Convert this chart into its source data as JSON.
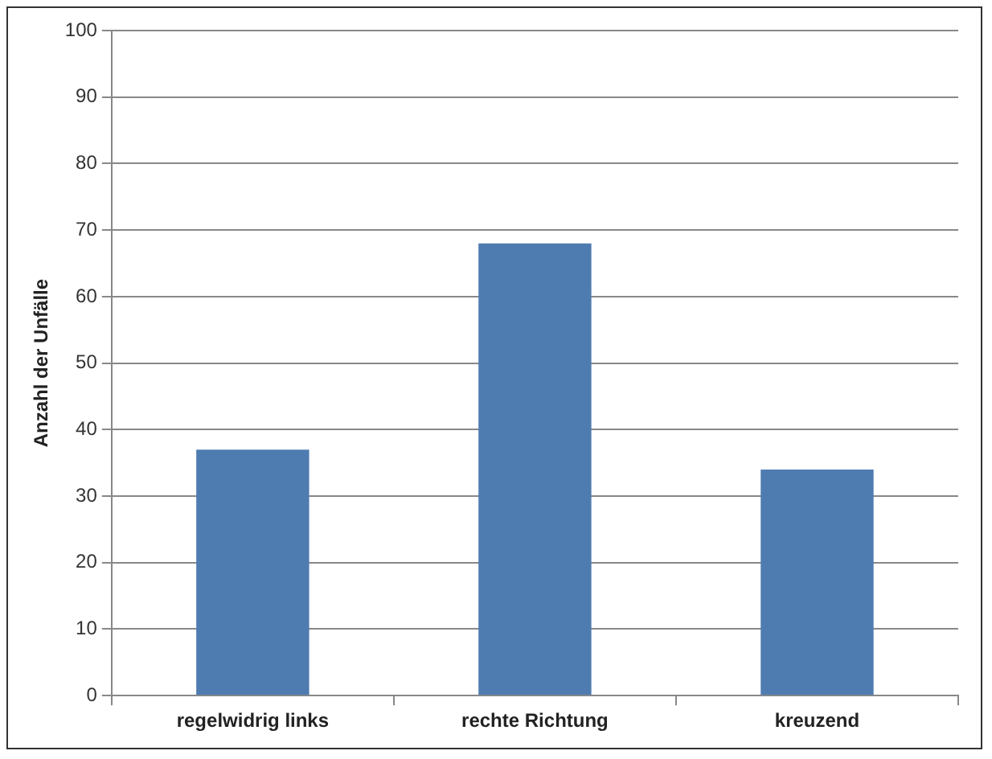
{
  "chart_data": {
    "type": "bar",
    "ylabel": "Anzahl der Unfälle",
    "categories": [
      "regelwidrig links",
      "rechte Richtung",
      "kreuzend"
    ],
    "values": [
      37,
      68,
      34
    ],
    "color": "#4f7cb0",
    "ylim": [
      0,
      100
    ],
    "yticks": [
      0,
      10,
      20,
      30,
      40,
      50,
      60,
      70,
      80,
      90,
      100
    ],
    "grid": "y"
  }
}
